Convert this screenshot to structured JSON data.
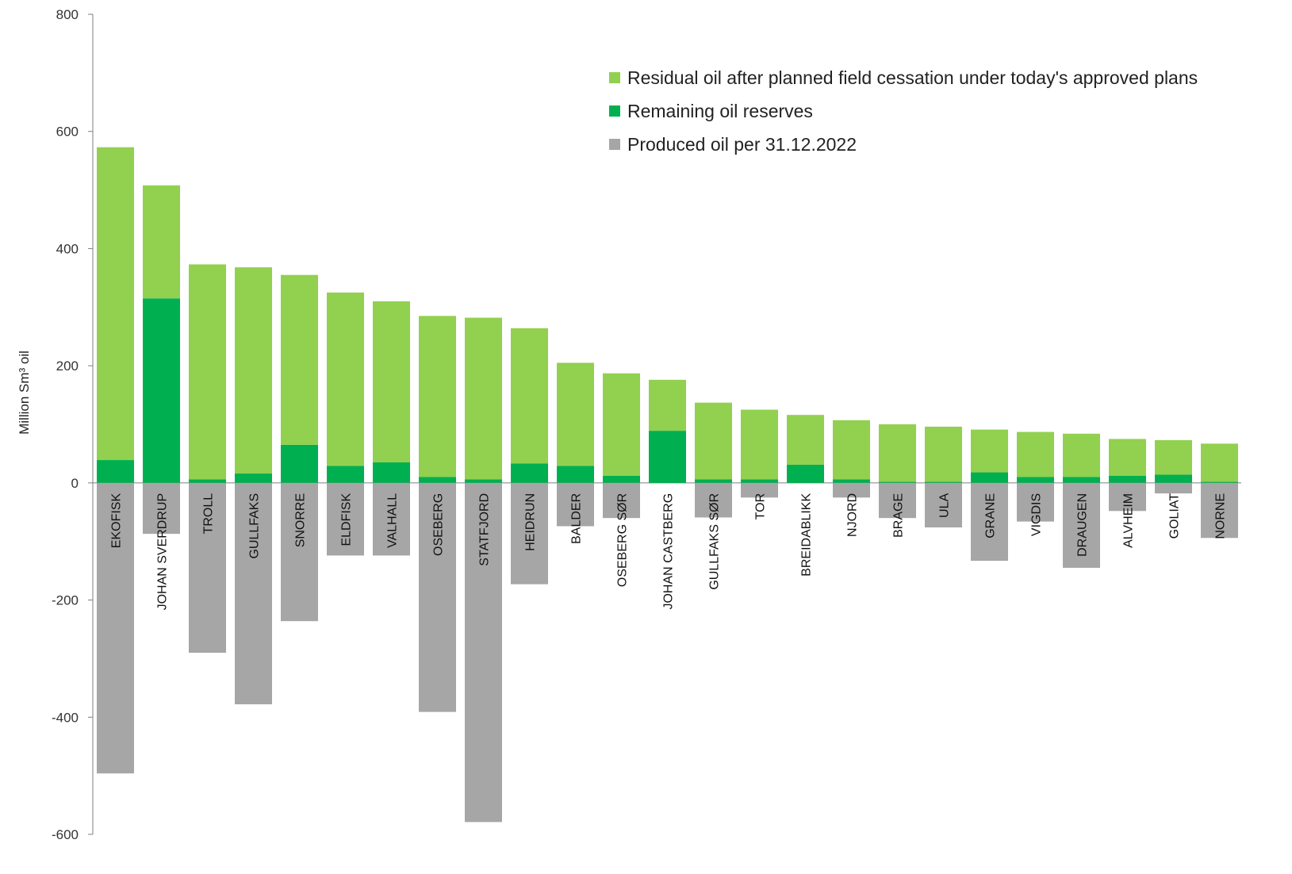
{
  "chart_data": {
    "type": "bar",
    "stacked": true,
    "ylabel": "Million Sm³ oil",
    "ylim": [
      -600,
      800
    ],
    "yticks": [
      800,
      600,
      400,
      200,
      0,
      -200,
      -400,
      -600
    ],
    "grid": false,
    "legend_position": "top-right",
    "categories": [
      "EKOFISK",
      "JOHAN SVERDRUP",
      "TROLL",
      "GULLFAKS",
      "SNORRE",
      "ELDFISK",
      "VALHALL",
      "OSEBERG",
      "STATFJORD",
      "HEIDRUN",
      "BALDER",
      "OSEBERG SØR",
      "JOHAN CASTBERG",
      "GULLFAKS SØR",
      "TOR",
      "BREIDABLIKK",
      "NJORD",
      "BRAGE",
      "ULA",
      "GRANE",
      "VIGDIS",
      "DRAUGEN",
      "ALVHEIM",
      "GOLIAT",
      "NORNE"
    ],
    "series": [
      {
        "name": "Residual oil after planned field cessation under today's approved plans",
        "color": "#92d050",
        "values": [
          534,
          193,
          367,
          352,
          290,
          296,
          275,
          275,
          276,
          231,
          176,
          175,
          87,
          131,
          119,
          85,
          101,
          98,
          94,
          73,
          77,
          74,
          63,
          59,
          65
        ]
      },
      {
        "name": "Remaining oil reserves",
        "color": "#00b050",
        "values": [
          39,
          315,
          6,
          16,
          65,
          29,
          35,
          10,
          6,
          33,
          29,
          12,
          89,
          6,
          6,
          31,
          6,
          2,
          2,
          18,
          10,
          10,
          12,
          14,
          2
        ]
      },
      {
        "name": "Produced oil per 31.12.2022",
        "color": "#a6a6a6",
        "values": [
          -496,
          -87,
          -290,
          -378,
          -236,
          -124,
          -124,
          -391,
          -579,
          -173,
          -74,
          -60,
          0,
          -59,
          -25,
          0,
          -25,
          -60,
          -76,
          -133,
          -66,
          -145,
          -48,
          -18,
          -94
        ]
      }
    ]
  }
}
